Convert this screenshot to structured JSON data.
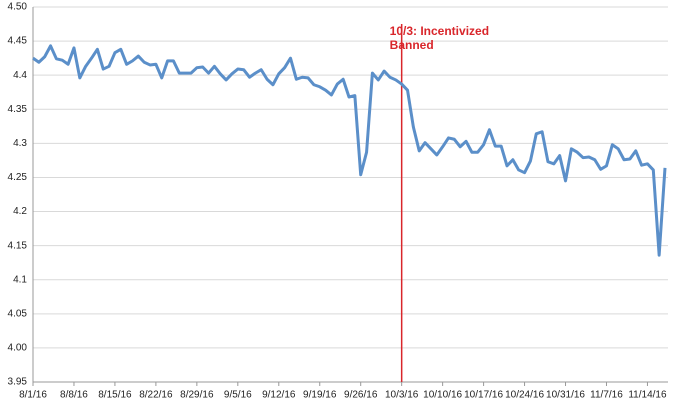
{
  "chart_data": {
    "type": "line",
    "categories": [
      "8/1/16",
      null,
      null,
      null,
      null,
      null,
      null,
      "8/8/16",
      null,
      null,
      null,
      null,
      null,
      null,
      "8/15/16",
      null,
      null,
      null,
      null,
      null,
      null,
      "8/22/16",
      null,
      null,
      null,
      null,
      null,
      null,
      "8/29/16",
      null,
      null,
      null,
      null,
      null,
      null,
      "9/5/16",
      null,
      null,
      null,
      null,
      null,
      null,
      "9/12/16",
      null,
      null,
      null,
      null,
      null,
      null,
      "9/19/16",
      null,
      null,
      null,
      null,
      null,
      null,
      "9/26/16",
      null,
      null,
      null,
      null,
      null,
      null,
      "10/3/16",
      null,
      null,
      null,
      null,
      null,
      null,
      "10/10/16",
      null,
      null,
      null,
      null,
      null,
      null,
      "10/17/16",
      null,
      null,
      null,
      null,
      null,
      null,
      "10/24/16",
      null,
      null,
      null,
      null,
      null,
      null,
      "10/31/16",
      null,
      null,
      null,
      null,
      null,
      null,
      "11/7/16",
      null,
      null,
      null,
      null,
      null,
      null,
      "11/14/16",
      null,
      null,
      null
    ],
    "series": [
      {
        "color": "#5b8fc9",
        "values": [
          4.425,
          4.419,
          4.427,
          4.443,
          4.424,
          4.422,
          4.416,
          4.44,
          4.396,
          4.413,
          4.425,
          4.438,
          4.409,
          4.413,
          4.433,
          4.438,
          4.416,
          4.421,
          4.428,
          4.419,
          4.415,
          4.416,
          4.396,
          4.421,
          4.421,
          4.403,
          4.403,
          4.403,
          4.411,
          4.412,
          4.403,
          4.413,
          4.402,
          4.393,
          4.402,
          4.409,
          4.408,
          4.397,
          4.403,
          4.408,
          4.394,
          4.386,
          4.402,
          4.411,
          4.425,
          4.394,
          4.397,
          4.396,
          4.386,
          4.383,
          4.378,
          4.371,
          4.387,
          4.394,
          4.368,
          4.37,
          4.254,
          4.287,
          4.403,
          4.393,
          4.406,
          4.397,
          4.393,
          4.387,
          4.378,
          4.324,
          4.289,
          4.301,
          4.292,
          4.283,
          4.295,
          4.308,
          4.306,
          4.295,
          4.303,
          4.287,
          4.287,
          4.298,
          4.32,
          4.296,
          4.296,
          4.267,
          4.276,
          4.261,
          4.257,
          4.274,
          4.314,
          4.317,
          4.273,
          4.27,
          4.282,
          4.245,
          4.292,
          4.287,
          4.279,
          4.28,
          4.276,
          4.262,
          4.267,
          4.298,
          4.292,
          4.276,
          4.277,
          4.289,
          4.268,
          4.27,
          4.261,
          4.136,
          4.264
        ]
      }
    ],
    "ylim": [
      3.95,
      4.5
    ],
    "yticks": [
      3.95,
      {
        "value": 4,
        "label": "4.00"
      },
      4.05,
      4.1,
      4.15,
      4.2,
      4.25,
      4.3,
      4.35,
      4.4,
      4.45,
      {
        "value": 4.5,
        "label": "4.50"
      }
    ],
    "grid": true,
    "annotation": {
      "text": [
        "10/3: Incentivized",
        "Banned"
      ],
      "at": "10/3/16",
      "color": "#d9262b"
    }
  }
}
